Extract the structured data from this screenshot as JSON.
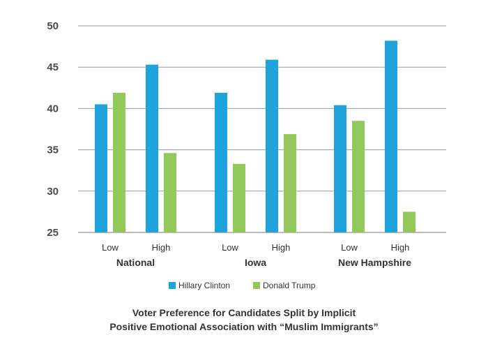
{
  "chart_data": {
    "type": "bar",
    "title_lines": [
      "Voter Preference for Candidates Split by Implicit",
      "Positive Emotional Association with “Muslim Immigrants”"
    ],
    "groups": [
      "National",
      "Iowa",
      "New Hampshire"
    ],
    "subcategories": [
      "Low",
      "High"
    ],
    "series": [
      {
        "name": "Hillary Clinton",
        "color": "#1fa3dd",
        "values": [
          40.5,
          45.3,
          41.9,
          45.9,
          40.4,
          48.2
        ]
      },
      {
        "name": "Donald Trump",
        "color": "#93c85a",
        "values": [
          41.9,
          34.6,
          33.3,
          36.9,
          38.5,
          27.5
        ]
      }
    ],
    "ylim": [
      25,
      50
    ],
    "yticks": [
      25,
      30,
      35,
      40,
      45,
      50
    ],
    "grid": true,
    "legend": "bottom"
  }
}
